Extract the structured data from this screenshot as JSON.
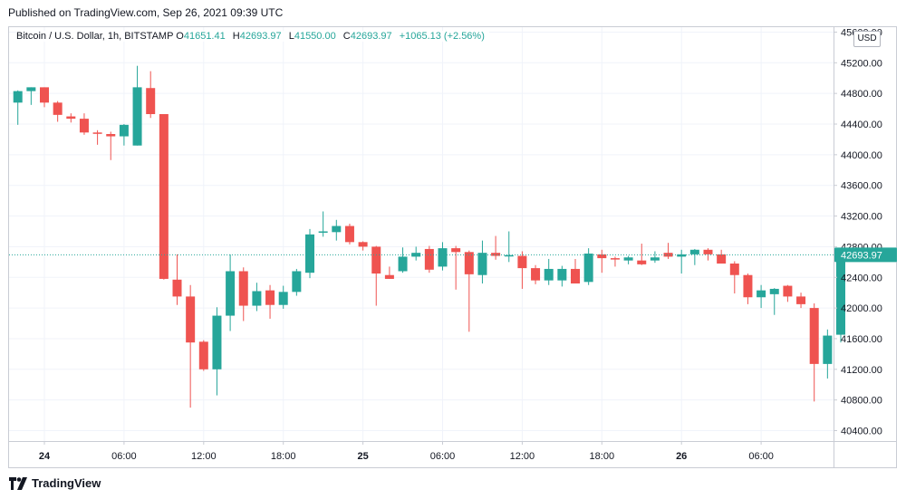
{
  "header": {
    "published": "Published on TradingView.com, Sep 26, 2021 09:39 UTC"
  },
  "legend": {
    "symbol": "Bitcoin / U.S. Dollar, 1h, BITSTAMP",
    "o_label": "O",
    "o": "41651.41",
    "h_label": "H",
    "h": "42693.97",
    "l_label": "L",
    "l": "41550.00",
    "c_label": "C",
    "c": "42693.97",
    "change": "+1065.13 (+2.56%)"
  },
  "currency_button": "USD",
  "footer": {
    "brand": "TradingView",
    "brand_icon": "tradingview-logo-icon"
  },
  "colors": {
    "up": "#26a69a",
    "down": "#ef5350",
    "grid": "#f0f3fa",
    "last_price_line": "#26a69a"
  },
  "chart_data": {
    "type": "candlestick",
    "title": "Bitcoin / U.S. Dollar, 1h, BITSTAMP",
    "y_axis": {
      "ticks": [
        "40400.00",
        "40800.00",
        "41200.00",
        "41600.00",
        "42000.00",
        "42400.00",
        "42800.00",
        "43200.00",
        "43600.00",
        "44000.00",
        "44400.00",
        "44800.00",
        "45200.00",
        "45600.00"
      ],
      "range": [
        40150,
        45650
      ],
      "position": "right"
    },
    "x_axis": {
      "ticks": [
        {
          "label": "24",
          "hour": 0,
          "bold": true
        },
        {
          "label": "06:00",
          "hour": 6
        },
        {
          "label": "12:00",
          "hour": 12
        },
        {
          "label": "18:00",
          "hour": 18
        },
        {
          "label": "25",
          "hour": 24,
          "bold": true
        },
        {
          "label": "06:00",
          "hour": 30
        },
        {
          "label": "12:00",
          "hour": 36
        },
        {
          "label": "18:00",
          "hour": 42
        },
        {
          "label": "26",
          "hour": 48,
          "bold": true
        },
        {
          "label": "06:00",
          "hour": 54
        }
      ]
    },
    "last_price": {
      "value": 42693.97,
      "label": "42693.97"
    },
    "grid": true,
    "candles": [
      {
        "hour": -2,
        "o": 44680,
        "h": 44840,
        "l": 44390,
        "c": 44830
      },
      {
        "hour": -1,
        "o": 44830,
        "h": 44840,
        "l": 44650,
        "c": 44880
      },
      {
        "hour": 0,
        "o": 44880,
        "h": 44840,
        "l": 44620,
        "c": 44680
      },
      {
        "hour": 1,
        "o": 44680,
        "h": 44700,
        "l": 44430,
        "c": 44520
      },
      {
        "hour": 2,
        "o": 44500,
        "h": 44540,
        "l": 44420,
        "c": 44470
      },
      {
        "hour": 3,
        "o": 44470,
        "h": 44540,
        "l": 44260,
        "c": 44290
      },
      {
        "hour": 4,
        "o": 44290,
        "h": 44320,
        "l": 44130,
        "c": 44280
      },
      {
        "hour": 5,
        "o": 44270,
        "h": 44300,
        "l": 43930,
        "c": 44240
      },
      {
        "hour": 6,
        "o": 44240,
        "h": 44400,
        "l": 44120,
        "c": 44390
      },
      {
        "hour": 7,
        "o": 44120,
        "h": 45160,
        "l": 44120,
        "c": 44880
      },
      {
        "hour": 8,
        "o": 44870,
        "h": 45090,
        "l": 44480,
        "c": 44530
      },
      {
        "hour": 9,
        "o": 44530,
        "h": 44530,
        "l": 42370,
        "c": 42380
      },
      {
        "hour": 10,
        "o": 42370,
        "h": 42700,
        "l": 42040,
        "c": 42150
      },
      {
        "hour": 11,
        "o": 42150,
        "h": 42300,
        "l": 40700,
        "c": 41550
      },
      {
        "hour": 12,
        "o": 41560,
        "h": 41580,
        "l": 41180,
        "c": 41200
      },
      {
        "hour": 13,
        "o": 41200,
        "h": 42010,
        "l": 40860,
        "c": 41900
      },
      {
        "hour": 14,
        "o": 41900,
        "h": 42700,
        "l": 41700,
        "c": 42480
      },
      {
        "hour": 15,
        "o": 42480,
        "h": 42530,
        "l": 41830,
        "c": 42030
      },
      {
        "hour": 16,
        "o": 42030,
        "h": 42330,
        "l": 41960,
        "c": 42220
      },
      {
        "hour": 17,
        "o": 42230,
        "h": 42300,
        "l": 41860,
        "c": 42040
      },
      {
        "hour": 18,
        "o": 42040,
        "h": 42290,
        "l": 41990,
        "c": 42210
      },
      {
        "hour": 19,
        "o": 42210,
        "h": 42510,
        "l": 42160,
        "c": 42480
      },
      {
        "hour": 20,
        "o": 42460,
        "h": 43030,
        "l": 42390,
        "c": 42960
      },
      {
        "hour": 21,
        "o": 42990,
        "h": 43260,
        "l": 42930,
        "c": 43000
      },
      {
        "hour": 22,
        "o": 42990,
        "h": 43150,
        "l": 42880,
        "c": 43070
      },
      {
        "hour": 23,
        "o": 43070,
        "h": 43100,
        "l": 42830,
        "c": 42860
      },
      {
        "hour": 24,
        "o": 42860,
        "h": 42870,
        "l": 42750,
        "c": 42800
      },
      {
        "hour": 25,
        "o": 42800,
        "h": 42810,
        "l": 42030,
        "c": 42450
      },
      {
        "hour": 26,
        "o": 42430,
        "h": 42540,
        "l": 42380,
        "c": 42380
      },
      {
        "hour": 27,
        "o": 42480,
        "h": 42790,
        "l": 42460,
        "c": 42670
      },
      {
        "hour": 28,
        "o": 42670,
        "h": 42800,
        "l": 42620,
        "c": 42720
      },
      {
        "hour": 29,
        "o": 42770,
        "h": 42810,
        "l": 42460,
        "c": 42500
      },
      {
        "hour": 30,
        "o": 42540,
        "h": 42860,
        "l": 42490,
        "c": 42780
      },
      {
        "hour": 31,
        "o": 42780,
        "h": 42810,
        "l": 42240,
        "c": 42730
      },
      {
        "hour": 32,
        "o": 42730,
        "h": 42750,
        "l": 41690,
        "c": 42440
      },
      {
        "hour": 33,
        "o": 42430,
        "h": 42880,
        "l": 42320,
        "c": 42720
      },
      {
        "hour": 34,
        "o": 42720,
        "h": 42940,
        "l": 42630,
        "c": 42680
      },
      {
        "hour": 35,
        "o": 42680,
        "h": 43000,
        "l": 42600,
        "c": 42690
      },
      {
        "hour": 36,
        "o": 42680,
        "h": 42740,
        "l": 42250,
        "c": 42520
      },
      {
        "hour": 37,
        "o": 42520,
        "h": 42560,
        "l": 42310,
        "c": 42360
      },
      {
        "hour": 38,
        "o": 42360,
        "h": 42640,
        "l": 42300,
        "c": 42510
      },
      {
        "hour": 39,
        "o": 42360,
        "h": 42550,
        "l": 42280,
        "c": 42510
      },
      {
        "hour": 40,
        "o": 42510,
        "h": 42640,
        "l": 42370,
        "c": 42320
      },
      {
        "hour": 41,
        "o": 42340,
        "h": 42780,
        "l": 42300,
        "c": 42710
      },
      {
        "hour": 42,
        "o": 42700,
        "h": 42760,
        "l": 42460,
        "c": 42650
      },
      {
        "hour": 43,
        "o": 42650,
        "h": 42670,
        "l": 42540,
        "c": 42640
      },
      {
        "hour": 44,
        "o": 42620,
        "h": 42680,
        "l": 42570,
        "c": 42660
      },
      {
        "hour": 45,
        "o": 42620,
        "h": 42840,
        "l": 42560,
        "c": 42570
      },
      {
        "hour": 46,
        "o": 42620,
        "h": 42740,
        "l": 42590,
        "c": 42660
      },
      {
        "hour": 47,
        "o": 42720,
        "h": 42850,
        "l": 42640,
        "c": 42670
      },
      {
        "hour": 48,
        "o": 42670,
        "h": 42760,
        "l": 42450,
        "c": 42700
      },
      {
        "hour": 49,
        "o": 42700,
        "h": 42770,
        "l": 42560,
        "c": 42760
      },
      {
        "hour": 50,
        "o": 42760,
        "h": 42780,
        "l": 42620,
        "c": 42700
      },
      {
        "hour": 51,
        "o": 42700,
        "h": 42760,
        "l": 42600,
        "c": 42580
      },
      {
        "hour": 52,
        "o": 42580,
        "h": 42610,
        "l": 42190,
        "c": 42430
      },
      {
        "hour": 53,
        "o": 42430,
        "h": 42450,
        "l": 42050,
        "c": 42140
      },
      {
        "hour": 54,
        "o": 42140,
        "h": 42300,
        "l": 42000,
        "c": 42230
      },
      {
        "hour": 55,
        "o": 42180,
        "h": 42260,
        "l": 41910,
        "c": 42250
      },
      {
        "hour": 56,
        "o": 42290,
        "h": 42300,
        "l": 42080,
        "c": 42150
      },
      {
        "hour": 57,
        "o": 42150,
        "h": 42200,
        "l": 42000,
        "c": 42050
      },
      {
        "hour": 58,
        "o": 42000,
        "h": 42060,
        "l": 40780,
        "c": 41270
      },
      {
        "hour": 59,
        "o": 41270,
        "h": 41720,
        "l": 41080,
        "c": 41640
      },
      {
        "hour": 60,
        "o": 41651.41,
        "h": 42693.97,
        "l": 41550,
        "c": 42693.97
      }
    ]
  }
}
